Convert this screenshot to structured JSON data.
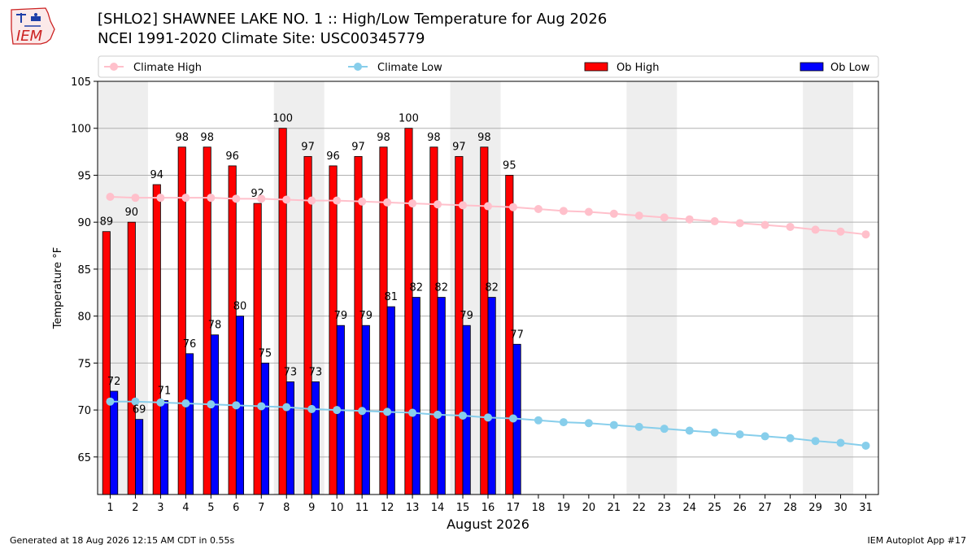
{
  "header": {
    "title_line1": "[SHLO2] SHAWNEE LAKE NO. 1 :: High/Low Temperature for Aug 2026",
    "title_line2": "NCEI 1991-2020 Climate Site: USC00345779"
  },
  "logo": {
    "text": "IEM"
  },
  "footer": {
    "left": "Generated at 18 Aug 2026 12:15 AM CDT in 0.55s",
    "right": "IEM Autoplot App #17"
  },
  "colors": {
    "ob_high": "#ff0000",
    "ob_low": "#0000ff",
    "climate_high": "#ffc0cb",
    "climate_low": "#87ceeb",
    "weekend_shade": "#eeeeee",
    "grid": "#b0b0b0"
  },
  "chart_data": {
    "type": "bar",
    "title": "[SHLO2] SHAWNEE LAKE NO. 1 :: High/Low Temperature for Aug 2026",
    "subtitle": "NCEI 1991-2020 Climate Site: USC00345779",
    "xlabel": "August 2026",
    "ylabel": "Temperature °F",
    "ylim": [
      61,
      105
    ],
    "xlim": [
      0.5,
      31.5
    ],
    "yticks": [
      65,
      70,
      75,
      80,
      85,
      90,
      95,
      100,
      105
    ],
    "grid": true,
    "legend_position": "top",
    "days": [
      1,
      2,
      3,
      4,
      5,
      6,
      7,
      8,
      9,
      10,
      11,
      12,
      13,
      14,
      15,
      16,
      17,
      18,
      19,
      20,
      21,
      22,
      23,
      24,
      25,
      26,
      27,
      28,
      29,
      30,
      31
    ],
    "shaded_days": [
      [
        1,
        2
      ],
      [
        8,
        9
      ],
      [
        15,
        16
      ],
      [
        22,
        23
      ],
      [
        29,
        30
      ]
    ],
    "series": [
      {
        "name": "Climate High",
        "kind": "line",
        "values": [
          92.7,
          92.6,
          92.6,
          92.6,
          92.6,
          92.5,
          92.5,
          92.4,
          92.3,
          92.3,
          92.2,
          92.1,
          92.0,
          91.9,
          91.8,
          91.7,
          91.6,
          91.4,
          91.2,
          91.1,
          90.9,
          90.7,
          90.5,
          90.3,
          90.1,
          89.9,
          89.7,
          89.5,
          89.2,
          89.0,
          88.7
        ]
      },
      {
        "name": "Climate Low",
        "kind": "line",
        "values": [
          70.9,
          70.9,
          70.8,
          70.7,
          70.6,
          70.5,
          70.4,
          70.3,
          70.1,
          70.0,
          69.9,
          69.8,
          69.7,
          69.5,
          69.4,
          69.2,
          69.1,
          68.9,
          68.7,
          68.6,
          68.4,
          68.2,
          68.0,
          67.8,
          67.6,
          67.4,
          67.2,
          67.0,
          66.7,
          66.5,
          66.2
        ]
      },
      {
        "name": "Ob High",
        "kind": "bar",
        "values": [
          89,
          90,
          94,
          98,
          98,
          96,
          92,
          100,
          97,
          96,
          97,
          98,
          100,
          98,
          97,
          98,
          95
        ]
      },
      {
        "name": "Ob Low",
        "kind": "bar",
        "values": [
          72,
          69,
          71,
          76,
          78,
          80,
          75,
          73,
          73,
          79,
          79,
          81,
          82,
          82,
          79,
          82,
          77
        ]
      }
    ]
  }
}
